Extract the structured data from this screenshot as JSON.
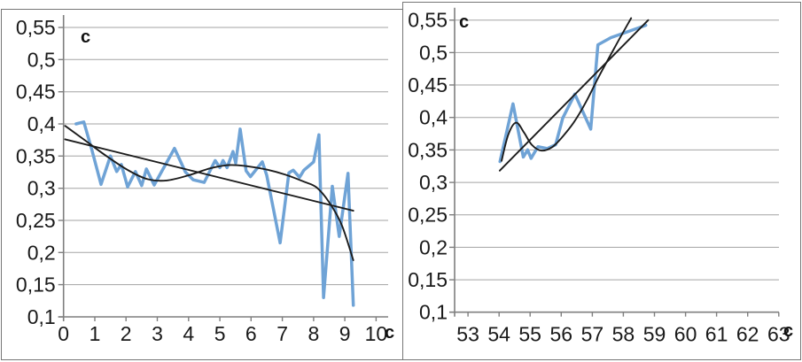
{
  "chart_data": [
    {
      "type": "line",
      "title": "",
      "ylabel": "c",
      "xlabel": "c",
      "grid": true,
      "legend": "none",
      "decimal_separator": "comma",
      "xlim": [
        0,
        10.37
      ],
      "ylim": [
        0.1,
        0.55
      ],
      "x_ticks": [
        {
          "v": 0,
          "label": "0"
        },
        {
          "v": 1,
          "label": "1"
        },
        {
          "v": 2,
          "label": "2"
        },
        {
          "v": 3,
          "label": "3"
        },
        {
          "v": 4,
          "label": "4"
        },
        {
          "v": 5,
          "label": "5"
        },
        {
          "v": 6,
          "label": "6"
        },
        {
          "v": 7,
          "label": "7"
        },
        {
          "v": 8,
          "label": "8"
        },
        {
          "v": 9,
          "label": "9"
        },
        {
          "v": 10,
          "label": "10"
        }
      ],
      "y_ticks": [
        {
          "v": 0.55,
          "label": "0,55"
        },
        {
          "v": 0.5,
          "label": "0,5"
        },
        {
          "v": 0.45,
          "label": "0,45"
        },
        {
          "v": 0.4,
          "label": "0,4"
        },
        {
          "v": 0.35,
          "label": "0,35"
        },
        {
          "v": 0.3,
          "label": "0,3"
        },
        {
          "v": 0.25,
          "label": "0,25"
        },
        {
          "v": 0.2,
          "label": "0,2"
        },
        {
          "v": 0.15,
          "label": "0,15"
        },
        {
          "v": 0.1,
          "label": "0,1"
        }
      ],
      "series": [
        {
          "name": "measured-data",
          "color": "#6fa3d6",
          "width": 3.5,
          "smooth": false,
          "points": [
            [
              0.4,
              0.4
            ],
            [
              0.65,
              0.403
            ],
            [
              0.9,
              0.361
            ],
            [
              1.2,
              0.306
            ],
            [
              1.5,
              0.35
            ],
            [
              1.7,
              0.326
            ],
            [
              1.85,
              0.337
            ],
            [
              2.05,
              0.302
            ],
            [
              2.3,
              0.326
            ],
            [
              2.5,
              0.304
            ],
            [
              2.65,
              0.33
            ],
            [
              2.9,
              0.305
            ],
            [
              3.55,
              0.362
            ],
            [
              3.9,
              0.325
            ],
            [
              4.15,
              0.313
            ],
            [
              4.5,
              0.309
            ],
            [
              4.85,
              0.343
            ],
            [
              5.0,
              0.332
            ],
            [
              5.1,
              0.343
            ],
            [
              5.23,
              0.332
            ],
            [
              5.42,
              0.357
            ],
            [
              5.51,
              0.339
            ],
            [
              5.65,
              0.392
            ],
            [
              5.84,
              0.327
            ],
            [
              5.98,
              0.318
            ],
            [
              6.36,
              0.341
            ],
            [
              6.5,
              0.32
            ],
            [
              6.93,
              0.215
            ],
            [
              7.21,
              0.324
            ],
            [
              7.35,
              0.328
            ],
            [
              7.55,
              0.317
            ],
            [
              7.69,
              0.328
            ],
            [
              8.0,
              0.341
            ],
            [
              8.17,
              0.383
            ],
            [
              8.32,
              0.13
            ],
            [
              8.6,
              0.303
            ],
            [
              8.82,
              0.225
            ],
            [
              9.1,
              0.323
            ],
            [
              9.27,
              0.118
            ]
          ]
        },
        {
          "name": "polynomial-trend",
          "color": "#1c1c1c",
          "width": 1.9,
          "smooth": true,
          "points": [
            [
              0.05,
              0.397
            ],
            [
              0.7,
              0.374
            ],
            [
              1.4,
              0.349
            ],
            [
              2.1,
              0.327
            ],
            [
              2.7,
              0.314
            ],
            [
              3.3,
              0.312
            ],
            [
              4.0,
              0.32
            ],
            [
              4.7,
              0.331
            ],
            [
              5.3,
              0.336
            ],
            [
              5.9,
              0.334
            ],
            [
              6.5,
              0.329
            ],
            [
              7.1,
              0.321
            ],
            [
              7.7,
              0.31
            ],
            [
              8.1,
              0.301
            ],
            [
              8.5,
              0.278
            ],
            [
              8.9,
              0.243
            ],
            [
              9.27,
              0.188
            ]
          ]
        },
        {
          "name": "linear-trend",
          "color": "#1c1c1c",
          "width": 1.9,
          "smooth": false,
          "points": [
            [
              0.05,
              0.376
            ],
            [
              9.27,
              0.265
            ]
          ]
        }
      ]
    },
    {
      "type": "line",
      "title": "",
      "ylabel": "c",
      "xlabel": "c",
      "grid": true,
      "legend": "none",
      "decimal_separator": "comma",
      "xlim": [
        52.57,
        63.43
      ],
      "ylim": [
        0.1,
        0.55
      ],
      "x_ticks": [
        {
          "v": 53,
          "label": "53"
        },
        {
          "v": 54,
          "label": "54"
        },
        {
          "v": 55,
          "label": "55"
        },
        {
          "v": 56,
          "label": "56"
        },
        {
          "v": 57,
          "label": "57"
        },
        {
          "v": 58,
          "label": "58"
        },
        {
          "v": 59,
          "label": "59"
        },
        {
          "v": 60,
          "label": "60"
        },
        {
          "v": 61,
          "label": "61"
        },
        {
          "v": 62,
          "label": "62"
        },
        {
          "v": 63,
          "label": "63"
        }
      ],
      "y_ticks": [
        {
          "v": 0.55,
          "label": "0,55"
        },
        {
          "v": 0.5,
          "label": "0,5"
        },
        {
          "v": 0.45,
          "label": "0,45"
        },
        {
          "v": 0.4,
          "label": "0,4"
        },
        {
          "v": 0.35,
          "label": "0,35"
        },
        {
          "v": 0.3,
          "label": "0,3"
        },
        {
          "v": 0.25,
          "label": "0,25"
        },
        {
          "v": 0.2,
          "label": "0,2"
        },
        {
          "v": 0.15,
          "label": "0,15"
        },
        {
          "v": 0.1,
          "label": "0,1"
        }
      ],
      "series": [
        {
          "name": "measured-data",
          "color": "#6fa3d6",
          "width": 3.5,
          "smooth": false,
          "points": [
            [
              54.03,
              0.332
            ],
            [
              54.45,
              0.421
            ],
            [
              54.78,
              0.339
            ],
            [
              54.92,
              0.35
            ],
            [
              55.03,
              0.337
            ],
            [
              55.25,
              0.355
            ],
            [
              55.55,
              0.352
            ],
            [
              55.82,
              0.358
            ],
            [
              56.05,
              0.399
            ],
            [
              56.44,
              0.436
            ],
            [
              56.95,
              0.382
            ],
            [
              57.18,
              0.512
            ],
            [
              57.6,
              0.523
            ],
            [
              58.72,
              0.542
            ]
          ]
        },
        {
          "name": "polynomial-trend",
          "color": "#1c1c1c",
          "width": 1.9,
          "smooth": true,
          "points": [
            [
              54.08,
              0.333
            ],
            [
              54.3,
              0.374
            ],
            [
              54.55,
              0.392
            ],
            [
              54.8,
              0.377
            ],
            [
              55.05,
              0.358
            ],
            [
              55.35,
              0.349
            ],
            [
              55.7,
              0.354
            ],
            [
              56.0,
              0.368
            ],
            [
              56.4,
              0.392
            ],
            [
              56.8,
              0.424
            ],
            [
              57.2,
              0.462
            ],
            [
              57.7,
              0.506
            ],
            [
              58.25,
              0.553
            ]
          ]
        },
        {
          "name": "linear-trend",
          "color": "#1c1c1c",
          "width": 1.9,
          "smooth": false,
          "points": [
            [
              54.02,
              0.318
            ],
            [
              58.8,
              0.55
            ]
          ]
        }
      ]
    }
  ],
  "style": {
    "gridline_color": "#a3a3a3",
    "axis_color": "#7f7f7f",
    "tick_label_color": "#1a1a1a",
    "tick_label_size": 23
  }
}
